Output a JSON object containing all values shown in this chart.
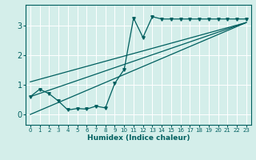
{
  "xlabel": "Humidex (Indice chaleur)",
  "bg_color": "#d4eeea",
  "grid_color": "#b0ddd8",
  "line_color": "#005f5f",
  "xlim": [
    -0.5,
    23.5
  ],
  "ylim": [
    -0.35,
    3.7
  ],
  "yticks": [
    0,
    1,
    2,
    3
  ],
  "xticks": [
    0,
    1,
    2,
    3,
    4,
    5,
    6,
    7,
    8,
    9,
    10,
    11,
    12,
    13,
    14,
    15,
    16,
    17,
    18,
    19,
    20,
    21,
    22,
    23
  ],
  "line1_x": [
    0,
    1,
    2,
    3,
    4,
    5,
    6,
    7,
    8,
    9,
    10,
    11,
    12,
    13,
    14,
    15,
    16,
    17,
    18,
    19,
    20,
    21,
    22,
    23
  ],
  "line1_y": [
    0.6,
    0.85,
    0.7,
    0.45,
    0.15,
    0.2,
    0.18,
    0.28,
    0.22,
    1.05,
    1.52,
    3.25,
    2.6,
    3.3,
    3.22,
    3.22,
    3.22,
    3.22,
    3.22,
    3.22,
    3.22,
    3.22,
    3.22,
    3.22
  ],
  "line2_x": [
    0,
    23
  ],
  "line2_y": [
    0.0,
    3.1
  ],
  "line3_x": [
    0,
    23
  ],
  "line3_y": [
    0.6,
    3.1
  ],
  "line4_x": [
    0,
    23
  ],
  "line4_y": [
    1.1,
    3.1
  ]
}
